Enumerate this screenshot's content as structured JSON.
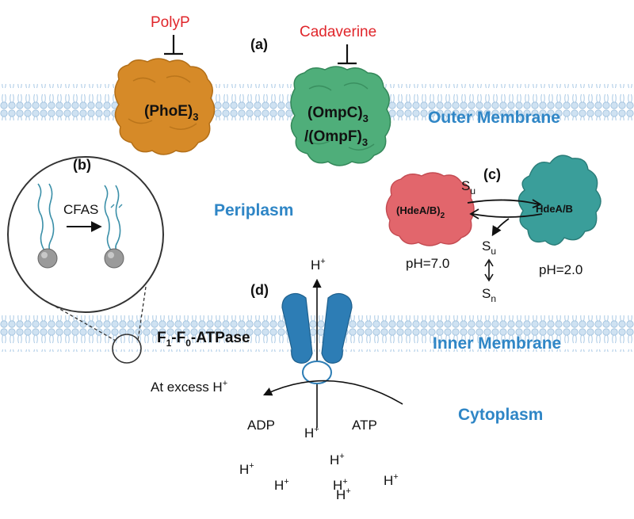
{
  "panels": {
    "a": "(a)",
    "b": "(b)",
    "c": "(c)",
    "d": "(d)"
  },
  "inhibitors": {
    "polyp": "PolyP",
    "cadaverine": "Cadaverine"
  },
  "proteins": {
    "phoe": {
      "main": "(PhoE)",
      "sub": "3"
    },
    "ompc": {
      "main": "(OmpC)",
      "sub": "3"
    },
    "ompf": {
      "main": "/(OmpF)",
      "sub": "3"
    },
    "hdea_dimer": {
      "main": "(HdeA/B)",
      "sub": "2"
    },
    "hdea_mono": "HdeA/B"
  },
  "regions": {
    "outer_membrane": "Outer Membrane",
    "periplasm": "Periplasm",
    "inner_membrane": "Inner Membrane",
    "cytoplasm": "Cytoplasm"
  },
  "cfas": "CFAS",
  "ph": {
    "neutral": "pH=7.0",
    "acid": "pH=2.0"
  },
  "substrate": {
    "s_main": "S",
    "u_sub": "u",
    "n_sub": "n"
  },
  "atpase": {
    "f1": "F",
    "f1_sub": "1",
    "dash": "-F",
    "f0_sub": "0",
    "suffix": "-ATPase"
  },
  "reaction": {
    "excess": "At excess H",
    "adp": "ADP",
    "atp": "ATP"
  },
  "proton": {
    "h": "H",
    "plus": "+"
  },
  "colors": {
    "membrane_head": "#cfe2f2",
    "membrane_tail": "#a8c8e4",
    "phoe": "#d68a28",
    "omp": "#4fae7a",
    "hdea_dimer": "#e2666c",
    "hdea_mono": "#3a9e9a",
    "atpase": "#2d7db5",
    "label_blue": "#2f86c6",
    "label_red": "#e0262b"
  }
}
